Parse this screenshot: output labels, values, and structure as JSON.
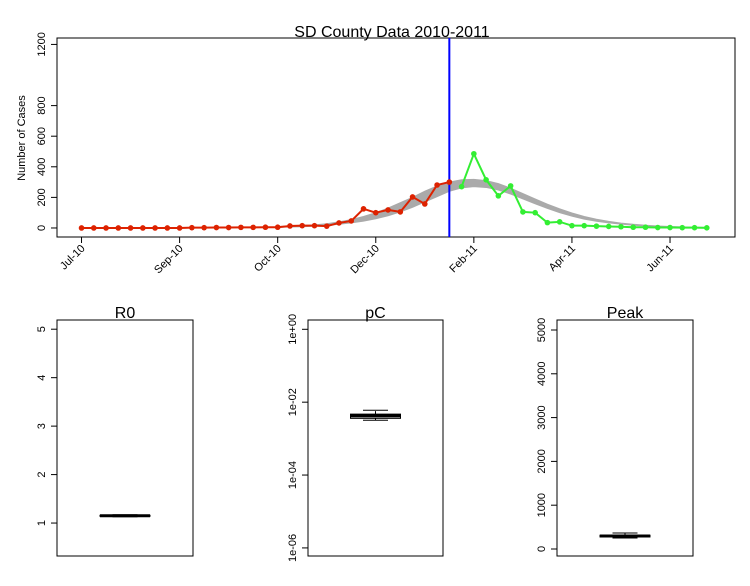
{
  "chart_data": [
    {
      "type": "line",
      "title": "SD County Data 2010-2011",
      "ylabel": "Number of Cases",
      "xlim": [
        -2,
        53.3
      ],
      "ylim": [
        -59,
        1242
      ],
      "xticks": [
        {
          "value": 0,
          "label": "Jul-10"
        },
        {
          "value": 8,
          "label": "Sep-10"
        },
        {
          "value": 16,
          "label": "Oct-10"
        },
        {
          "value": 24,
          "label": "Dec-10"
        },
        {
          "value": 32,
          "label": "Feb-11"
        },
        {
          "value": 40,
          "label": "Apr-11"
        },
        {
          "value": 48,
          "label": "Jun-11"
        }
      ],
      "yticks": [
        0,
        200,
        400,
        600,
        800,
        1200
      ],
      "band": {
        "color": "#aaaaaa",
        "x": [
          16,
          17,
          18,
          19,
          20,
          21,
          22,
          23,
          24,
          25,
          26,
          27,
          28,
          29,
          30,
          31,
          32,
          33,
          34,
          35,
          36,
          37,
          38,
          39,
          40,
          41,
          42,
          43,
          44,
          45,
          46,
          47,
          48,
          49,
          50,
          51
        ],
        "upper": [
          10,
          12,
          15,
          20,
          28,
          40,
          55,
          75,
          100,
          130,
          165,
          200,
          240,
          275,
          300,
          315,
          318,
          310,
          290,
          260,
          225,
          190,
          155,
          125,
          98,
          75,
          57,
          43,
          32,
          24,
          18,
          13,
          10,
          7,
          5,
          4
        ],
        "lower": [
          5,
          6,
          8,
          12,
          17,
          24,
          33,
          45,
          60,
          80,
          105,
          135,
          170,
          205,
          240,
          262,
          270,
          265,
          248,
          222,
          190,
          158,
          128,
          100,
          77,
          58,
          44,
          33,
          25,
          18,
          13,
          10,
          7,
          5,
          4,
          3
        ]
      },
      "vline": {
        "x": 30,
        "color": "#0000ff"
      },
      "series": [
        {
          "color": "#dd2200",
          "x": [
            0,
            1,
            2,
            3,
            4,
            5,
            6,
            7,
            8,
            9,
            10,
            11,
            12,
            13,
            14,
            15,
            16,
            17,
            18,
            19,
            20,
            21,
            22,
            23,
            24,
            25,
            26,
            27,
            28,
            29,
            30
          ],
          "values": [
            0,
            0,
            0,
            0,
            0,
            0,
            0,
            0,
            0,
            2,
            2,
            3,
            3,
            4,
            4,
            5,
            5,
            13,
            15,
            15,
            12,
            33,
            46,
            125,
            100,
            118,
            105,
            203,
            157,
            281,
            300
          ]
        },
        {
          "color": "#33ee33",
          "x": [
            31,
            32,
            33,
            34,
            35,
            36,
            37,
            38,
            39,
            40,
            41,
            42,
            43,
            44,
            45,
            46,
            47,
            48,
            49,
            50,
            51
          ],
          "values": [
            270,
            485,
            315,
            210,
            275,
            105,
            100,
            35,
            40,
            15,
            15,
            12,
            10,
            8,
            5,
            5,
            3,
            3,
            2,
            2,
            1
          ]
        }
      ]
    },
    {
      "type": "box",
      "title": "R0",
      "ylim": [
        0.32,
        5.19
      ],
      "yticks": [
        1,
        2,
        3,
        4,
        5
      ],
      "log": false,
      "color": "#000000",
      "stats": {
        "min": 1.13,
        "q1": 1.14,
        "median": 1.15,
        "q3": 1.16,
        "max": 1.17
      }
    },
    {
      "type": "box",
      "title": "pC",
      "ylim": [
        6e-07,
        1.8
      ],
      "log": true,
      "color": "#000000",
      "yticks": [
        {
          "value": 1,
          "label": "1e+00"
        },
        {
          "value": 0.01,
          "label": "1e-02"
        },
        {
          "value": 0.0001,
          "label": "1e-04"
        },
        {
          "value": 1e-06,
          "label": "1e-06"
        }
      ],
      "stats": {
        "min": 0.0032,
        "q1": 0.0036,
        "median": 0.0042,
        "q3": 0.0047,
        "max": 0.006
      }
    },
    {
      "type": "box",
      "title": "Peak",
      "ylim": [
        -160,
        5228
      ],
      "yticks": [
        0,
        1000,
        2000,
        3000,
        4000,
        5000
      ],
      "log": false,
      "color": "#000000",
      "stats": {
        "min": 250,
        "q1": 275,
        "median": 297,
        "q3": 315,
        "max": 365
      }
    }
  ]
}
